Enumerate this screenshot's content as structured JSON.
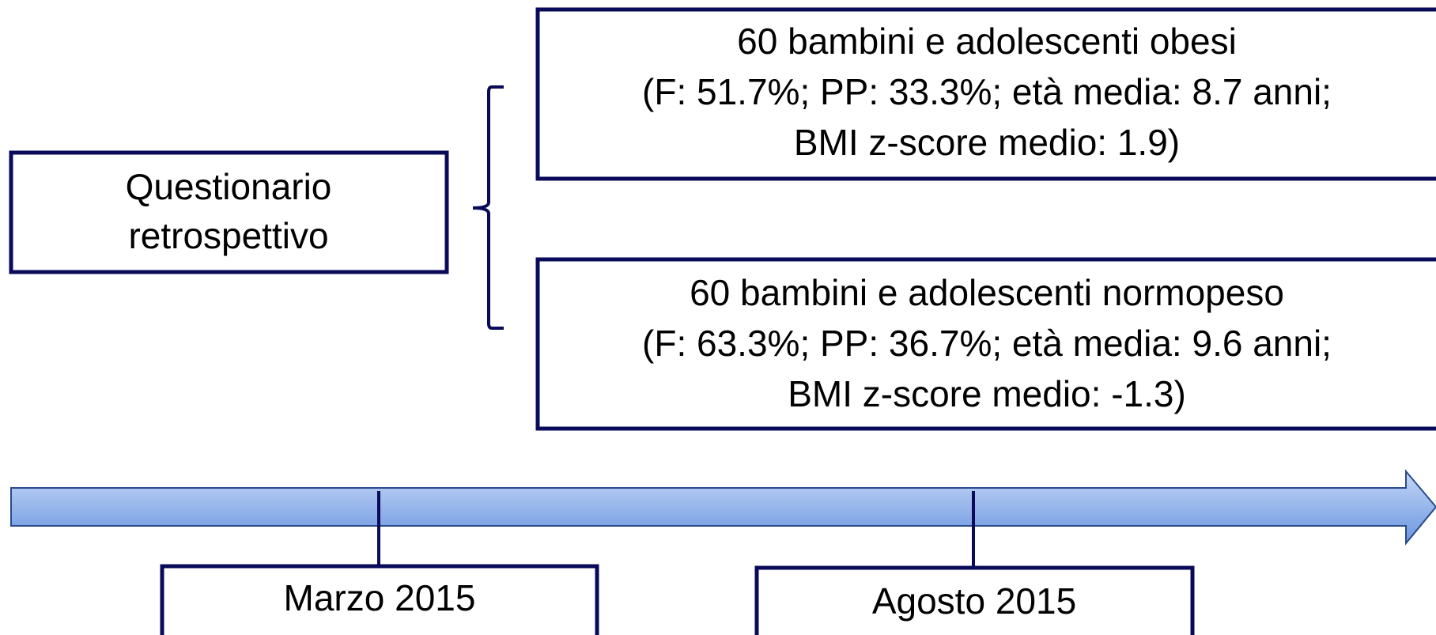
{
  "left_box": {
    "lines": [
      "Questionario",
      "retrospettivo"
    ]
  },
  "groups": [
    {
      "lines": [
        "60 bambini e adolescenti obesi",
        "(F: 51.7%; PP: 33.3%; età media: 8.7 anni;",
        "BMI z-score medio: 1.9)"
      ]
    },
    {
      "lines": [
        "60 bambini e adolescenti normopeso",
        "(F: 63.3%; PP: 36.7%; età media: 9.6 anni;",
        "BMI z-score medio: -1.3)"
      ]
    }
  ],
  "timeline": {
    "labels": [
      "Marzo 2015",
      "Agosto 2015"
    ]
  }
}
